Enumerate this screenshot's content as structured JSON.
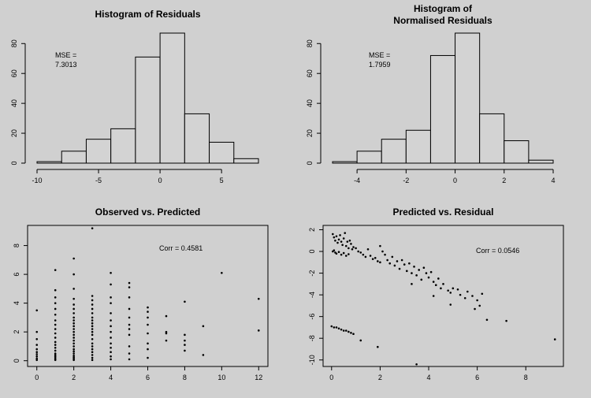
{
  "background": "#d0d0d0",
  "bar_fill": "#d3d3d3",
  "chart_data": [
    {
      "type": "bar",
      "title": [
        "Histogram of Residuals"
      ],
      "annotation": [
        "MSE =",
        "7.3013"
      ],
      "bin_edges": [
        -10,
        -8,
        -6,
        -4,
        -2,
        0,
        2,
        4,
        6,
        8
      ],
      "values": [
        1,
        8,
        16,
        23,
        71,
        87,
        33,
        14,
        3
      ],
      "xlim": [
        -10,
        8
      ],
      "ylim": [
        0,
        87
      ],
      "x_ticks": [
        -10,
        -5,
        0,
        5
      ],
      "y_ticks": [
        0,
        20,
        40,
        60,
        80
      ]
    },
    {
      "type": "bar",
      "title": [
        "Histogram of",
        "Normalised Residuals"
      ],
      "annotation": [
        "MSE =",
        "1.7959"
      ],
      "bin_edges": [
        -5,
        -4,
        -3,
        -2,
        -1,
        0,
        1,
        2,
        3,
        4
      ],
      "values": [
        1,
        8,
        16,
        22,
        72,
        87,
        33,
        15,
        2
      ],
      "xlim": [
        -5,
        4
      ],
      "ylim": [
        0,
        87
      ],
      "x_ticks": [
        -4,
        -2,
        0,
        2,
        4
      ],
      "y_ticks": [
        0,
        20,
        40,
        60,
        80
      ]
    },
    {
      "type": "scatter",
      "title": [
        "Observed vs. Predicted"
      ],
      "annotation": [
        "Corr = 0.4581"
      ],
      "xlim": [
        -0.5,
        12.5
      ],
      "ylim": [
        -0.4,
        9.4
      ],
      "x_ticks": [
        0,
        2,
        4,
        6,
        8,
        10,
        12
      ],
      "y_ticks": [
        0,
        2,
        4,
        6,
        8
      ],
      "points": [
        [
          0,
          0.05
        ],
        [
          0,
          0.15
        ],
        [
          0,
          0.3
        ],
        [
          0,
          0.45
        ],
        [
          0,
          0.6
        ],
        [
          0,
          0.8
        ],
        [
          0,
          1.1
        ],
        [
          0,
          1.5
        ],
        [
          0,
          2.0
        ],
        [
          0,
          3.5
        ],
        [
          1,
          0.05
        ],
        [
          1,
          0.1
        ],
        [
          1,
          0.2
        ],
        [
          1,
          0.3
        ],
        [
          1,
          0.4
        ],
        [
          1,
          0.5
        ],
        [
          1,
          0.7
        ],
        [
          1,
          0.9
        ],
        [
          1,
          1.1
        ],
        [
          1,
          1.3
        ],
        [
          1,
          1.6
        ],
        [
          1,
          1.9
        ],
        [
          1,
          2.2
        ],
        [
          1,
          2.5
        ],
        [
          1,
          2.8
        ],
        [
          1,
          3.2
        ],
        [
          1,
          3.6
        ],
        [
          1,
          4.0
        ],
        [
          1,
          4.4
        ],
        [
          1,
          4.9
        ],
        [
          1,
          6.3
        ],
        [
          2,
          0.05
        ],
        [
          2,
          0.15
        ],
        [
          2,
          0.25
        ],
        [
          2,
          0.35
        ],
        [
          2,
          0.5
        ],
        [
          2,
          0.65
        ],
        [
          2,
          0.8
        ],
        [
          2,
          1.0
        ],
        [
          2,
          1.2
        ],
        [
          2,
          1.4
        ],
        [
          2,
          1.6
        ],
        [
          2,
          1.8
        ],
        [
          2,
          2.0
        ],
        [
          2,
          2.2
        ],
        [
          2,
          2.4
        ],
        [
          2,
          2.6
        ],
        [
          2,
          2.8
        ],
        [
          2,
          3.0
        ],
        [
          2,
          3.3
        ],
        [
          2,
          3.6
        ],
        [
          2,
          3.9
        ],
        [
          2,
          4.3
        ],
        [
          2,
          5.0
        ],
        [
          2,
          6.0
        ],
        [
          2,
          7.1
        ],
        [
          3,
          0.05
        ],
        [
          3,
          0.2
        ],
        [
          3,
          0.4
        ],
        [
          3,
          0.6
        ],
        [
          3,
          0.8
        ],
        [
          3,
          1.0
        ],
        [
          3,
          1.2
        ],
        [
          3,
          1.5
        ],
        [
          3,
          1.8
        ],
        [
          3,
          2.0
        ],
        [
          3,
          2.2
        ],
        [
          3,
          2.4
        ],
        [
          3,
          2.6
        ],
        [
          3,
          2.8
        ],
        [
          3,
          3.0
        ],
        [
          3,
          3.3
        ],
        [
          3,
          3.6
        ],
        [
          3,
          3.9
        ],
        [
          3,
          4.2
        ],
        [
          3,
          4.5
        ],
        [
          3,
          9.2
        ],
        [
          4,
          0.1
        ],
        [
          4,
          0.3
        ],
        [
          4,
          0.6
        ],
        [
          4,
          0.9
        ],
        [
          4,
          1.2
        ],
        [
          4,
          1.6
        ],
        [
          4,
          2.0
        ],
        [
          4,
          2.4
        ],
        [
          4,
          2.8
        ],
        [
          4,
          3.3
        ],
        [
          4,
          4.0
        ],
        [
          4,
          4.4
        ],
        [
          4,
          5.3
        ],
        [
          4,
          6.1
        ],
        [
          5,
          0.1
        ],
        [
          5,
          0.5
        ],
        [
          5,
          1.0
        ],
        [
          5,
          1.8
        ],
        [
          5,
          2.2
        ],
        [
          5,
          2.5
        ],
        [
          5,
          3.0
        ],
        [
          5,
          3.6
        ],
        [
          5,
          4.4
        ],
        [
          5,
          5.1
        ],
        [
          5,
          5.4
        ],
        [
          6,
          0.2
        ],
        [
          6,
          0.8
        ],
        [
          6,
          1.2
        ],
        [
          6,
          1.9
        ],
        [
          6,
          2.5
        ],
        [
          6,
          3.0
        ],
        [
          6,
          3.4
        ],
        [
          6,
          3.7
        ],
        [
          7,
          1.4
        ],
        [
          7,
          1.9
        ],
        [
          7,
          2.0
        ],
        [
          7,
          3.1
        ],
        [
          8,
          0.7
        ],
        [
          8,
          1.1
        ],
        [
          8,
          1.4
        ],
        [
          8,
          1.8
        ],
        [
          8,
          4.1
        ],
        [
          9,
          0.4
        ],
        [
          9,
          2.4
        ],
        [
          10,
          6.1
        ],
        [
          12,
          2.1
        ],
        [
          12,
          4.3
        ]
      ]
    },
    {
      "type": "scatter",
      "title": [
        "Predicted vs. Residual"
      ],
      "annotation": [
        "Corr = 0.0546"
      ],
      "xlim": [
        -0.35,
        9.55
      ],
      "ylim": [
        -10.6,
        2.4
      ],
      "x_ticks": [
        0,
        2,
        4,
        6,
        8
      ],
      "y_ticks": [
        2,
        0,
        -2,
        -4,
        -6,
        -8,
        -10
      ],
      "points": [
        [
          0.05,
          1.6
        ],
        [
          0.1,
          1.3
        ],
        [
          0.15,
          1.0
        ],
        [
          0.2,
          1.4
        ],
        [
          0.25,
          0.8
        ],
        [
          0.3,
          1.1
        ],
        [
          0.35,
          1.5
        ],
        [
          0.4,
          0.9
        ],
        [
          0.45,
          0.6
        ],
        [
          0.5,
          1.2
        ],
        [
          0.55,
          1.7
        ],
        [
          0.6,
          0.5
        ],
        [
          0.65,
          0.9
        ],
        [
          0.7,
          0.3
        ],
        [
          0.75,
          1.0
        ],
        [
          0.8,
          0.7
        ],
        [
          0.85,
          0.2
        ],
        [
          0.9,
          0.4
        ],
        [
          0.05,
          0.0
        ],
        [
          0.1,
          0.1
        ],
        [
          0.15,
          -0.1
        ],
        [
          0.2,
          -0.2
        ],
        [
          0.3,
          -0.05
        ],
        [
          0.4,
          -0.3
        ],
        [
          0.5,
          -0.15
        ],
        [
          0.6,
          -0.4
        ],
        [
          0.7,
          -0.25
        ],
        [
          1.0,
          0.3
        ],
        [
          1.1,
          0.0
        ],
        [
          1.2,
          -0.1
        ],
        [
          1.3,
          -0.3
        ],
        [
          1.4,
          -0.5
        ],
        [
          1.5,
          0.2
        ],
        [
          1.6,
          -0.4
        ],
        [
          1.7,
          -0.7
        ],
        [
          1.8,
          -0.6
        ],
        [
          1.9,
          -0.9
        ],
        [
          2.0,
          -1.0
        ],
        [
          2.0,
          0.5
        ],
        [
          2.1,
          0.0
        ],
        [
          2.2,
          -0.3
        ],
        [
          2.3,
          -0.8
        ],
        [
          2.4,
          -1.1
        ],
        [
          2.5,
          -0.5
        ],
        [
          2.6,
          -1.3
        ],
        [
          2.7,
          -0.9
        ],
        [
          2.8,
          -1.6
        ],
        [
          2.9,
          -0.8
        ],
        [
          3.0,
          -1.2
        ],
        [
          3.1,
          -1.8
        ],
        [
          3.2,
          -1.1
        ],
        [
          3.3,
          -2.0
        ],
        [
          3.4,
          -1.4
        ],
        [
          3.5,
          -2.2
        ],
        [
          3.6,
          -1.7
        ],
        [
          3.7,
          -2.6
        ],
        [
          3.8,
          -1.5
        ],
        [
          3.9,
          -2.0
        ],
        [
          4.0,
          -2.4
        ],
        [
          4.1,
          -1.9
        ],
        [
          4.2,
          -2.8
        ],
        [
          4.3,
          -3.1
        ],
        [
          4.4,
          -2.5
        ],
        [
          4.5,
          -3.4
        ],
        [
          4.6,
          -3.0
        ],
        [
          4.8,
          -3.6
        ],
        [
          4.9,
          -3.8
        ],
        [
          5.0,
          -3.4
        ],
        [
          5.2,
          -3.5
        ],
        [
          5.3,
          -4.0
        ],
        [
          5.5,
          -4.3
        ],
        [
          5.6,
          -3.7
        ],
        [
          5.8,
          -4.1
        ],
        [
          6.0,
          -4.5
        ],
        [
          6.2,
          -3.9
        ],
        [
          3.3,
          -3.0
        ],
        [
          4.2,
          -4.1
        ],
        [
          5.9,
          -5.3
        ],
        [
          6.1,
          -5.0
        ],
        [
          6.4,
          -6.3
        ],
        [
          7.2,
          -6.4
        ],
        [
          4.9,
          -4.9
        ],
        [
          0.0,
          -6.9
        ],
        [
          0.1,
          -7.0
        ],
        [
          0.2,
          -7.0
        ],
        [
          0.3,
          -7.1
        ],
        [
          0.4,
          -7.2
        ],
        [
          0.5,
          -7.3
        ],
        [
          0.6,
          -7.3
        ],
        [
          0.7,
          -7.4
        ],
        [
          0.8,
          -7.5
        ],
        [
          0.9,
          -7.6
        ],
        [
          1.2,
          -8.2
        ],
        [
          1.9,
          -8.8
        ],
        [
          3.5,
          -10.4
        ],
        [
          9.2,
          -8.1
        ]
      ]
    }
  ]
}
